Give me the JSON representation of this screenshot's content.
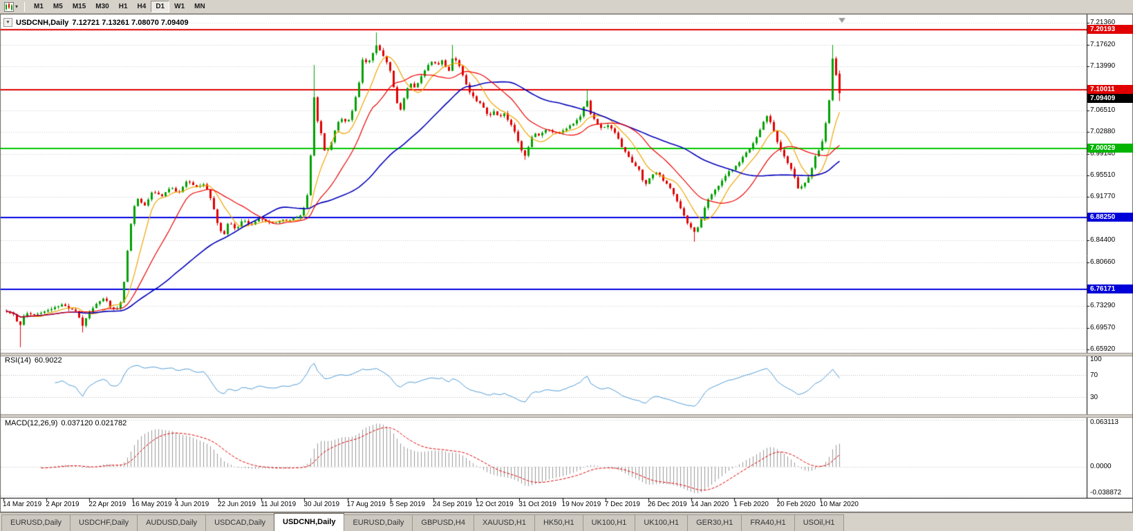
{
  "icons": {
    "collapse": "▼",
    "caret": "▾"
  },
  "toolbar": {
    "buttons": [
      "M1",
      "M5",
      "M15",
      "M30",
      "H1",
      "H4",
      "D1",
      "W1",
      "MN"
    ],
    "active": "D1"
  },
  "chart": {
    "title": {
      "symbol_text": "USDCNH,Daily",
      "ohlc": "7.12721 7.13261 7.08070 7.09409"
    },
    "price_axis": {
      "labels": [
        {
          "text": "7.21360",
          "price": 7.2136,
          "style": "plain"
        },
        {
          "text": "7.20193",
          "price": 7.20193,
          "style": "red"
        },
        {
          "text": "7.17620",
          "price": 7.1762,
          "style": "plain"
        },
        {
          "text": "7.13990",
          "price": 7.1399,
          "style": "plain"
        },
        {
          "text": "7.10011",
          "price": 7.10011,
          "style": "red"
        },
        {
          "text": "7.09409",
          "price": 7.09409,
          "style": "black"
        },
        {
          "text": "7.06510",
          "price": 7.0651,
          "style": "plain"
        },
        {
          "text": "7.02880",
          "price": 7.0288,
          "style": "plain"
        },
        {
          "text": "7.00029",
          "price": 7.00029,
          "style": "green"
        },
        {
          "text": "6.99140",
          "price": 6.9914,
          "style": "plain"
        },
        {
          "text": "6.95510",
          "price": 6.9551,
          "style": "plain"
        },
        {
          "text": "6.91770",
          "price": 6.9177,
          "style": "plain"
        },
        {
          "text": "6.88250",
          "price": 6.8825,
          "style": "blue"
        },
        {
          "text": "6.84400",
          "price": 6.844,
          "style": "plain"
        },
        {
          "text": "6.80660",
          "price": 6.8066,
          "style": "plain"
        },
        {
          "text": "6.76171",
          "price": 6.76171,
          "style": "blue"
        },
        {
          "text": "6.73290",
          "price": 6.7329,
          "style": "plain"
        },
        {
          "text": "6.69570",
          "price": 6.6957,
          "style": "plain"
        },
        {
          "text": "6.65920",
          "price": 6.6592,
          "style": "plain"
        }
      ]
    },
    "x_axis": {
      "labels": [
        "14 Mar 2019",
        "2 Apr 2019",
        "22 Apr 2019",
        "16 May 2019",
        "4 Jun 2019",
        "22 Jun 2019",
        "11 Jul 2019",
        "30 Jul 2019",
        "17 Aug 2019",
        "5 Sep 2019",
        "24 Sep 2019",
        "12 Oct 2019",
        "31 Oct 2019",
        "19 Nov 2019",
        "7 Dec 2019",
        "26 Dec 2019",
        "14 Jan 2020",
        "1 Feb 2020",
        "20 Feb 2020",
        "10 Mar 2020"
      ]
    },
    "hlines": [
      {
        "price": 7.20193,
        "color": "#e00000"
      },
      {
        "price": 7.10011,
        "color": "#e00000"
      },
      {
        "price": 7.00029,
        "color": "#00c800"
      },
      {
        "price": 6.8825,
        "color": "#0000e0"
      },
      {
        "price": 6.76171,
        "color": "#0000e0"
      }
    ]
  },
  "rsi": {
    "label": "RSI(14)",
    "value": "60.9022",
    "period": 14,
    "line_color": "#4f9bd5",
    "levels": [
      70,
      30
    ],
    "axis_labels": [
      {
        "text": "100",
        "value": 100
      },
      {
        "text": "70",
        "value": 70
      },
      {
        "text": "30",
        "value": 30
      }
    ]
  },
  "macd": {
    "label": "MACD(12,26,9)",
    "values": "0.037120 0.021782",
    "histogram_color": "#999999",
    "signal_color": "#e00000",
    "axis_labels": [
      {
        "text": "0.063113",
        "value": 0.063113
      },
      {
        "text": "0.0000",
        "value": 0
      },
      {
        "text": "-0.038872",
        "value": -0.038872
      }
    ]
  },
  "tabs": {
    "items": [
      "EURUSD,Daily",
      "USDCHF,Daily",
      "AUDUSD,Daily",
      "USDCAD,Daily",
      "USDCNH,Daily",
      "EURUSD,Daily",
      "GBPUSD,H4",
      "XAUUSD,H1",
      "HK50,H1",
      "UK100,H1",
      "UK100,H1",
      "GER30,H1",
      "FRA40,H1",
      "USOil,H1"
    ],
    "active_index": 4
  },
  "chart_data": {
    "type": "candlestick",
    "symbol": "USDCNH",
    "timeframe": "Daily",
    "last_bar": {
      "open": 7.12721,
      "high": 7.13261,
      "low": 7.0807,
      "close": 7.09409
    },
    "price_range": {
      "top": 7.2136,
      "bottom": 6.6592
    },
    "bars": 242,
    "noise": 0.0036,
    "wick": 0.0042,
    "colors": {
      "bull": "#00a000",
      "bear": "#e00000"
    },
    "moving_averages": [
      {
        "period": 8,
        "color": "#f0a500",
        "width": 1.2
      },
      {
        "period": 45,
        "color": "#0000bb",
        "width": 1.6
      },
      {
        "period": 18,
        "color": "#ee0000",
        "width": 1.2
      }
    ],
    "anchors": [
      [
        0.0,
        6.725
      ],
      [
        0.01,
        6.718
      ],
      [
        0.015,
        6.692
      ],
      [
        0.022,
        6.722
      ],
      [
        0.039,
        6.72
      ],
      [
        0.051,
        6.728
      ],
      [
        0.068,
        6.735
      ],
      [
        0.085,
        6.722
      ],
      [
        0.091,
        6.7
      ],
      [
        0.098,
        6.722
      ],
      [
        0.11,
        6.742
      ],
      [
        0.118,
        6.748
      ],
      [
        0.124,
        6.732
      ],
      [
        0.134,
        6.728
      ],
      [
        0.139,
        6.745
      ],
      [
        0.146,
        6.835
      ],
      [
        0.152,
        6.9
      ],
      [
        0.158,
        6.915
      ],
      [
        0.166,
        6.903
      ],
      [
        0.176,
        6.928
      ],
      [
        0.186,
        6.918
      ],
      [
        0.197,
        6.932
      ],
      [
        0.207,
        6.925
      ],
      [
        0.217,
        6.945
      ],
      [
        0.227,
        6.932
      ],
      [
        0.238,
        6.938
      ],
      [
        0.247,
        6.905
      ],
      [
        0.255,
        6.862
      ],
      [
        0.261,
        6.852
      ],
      [
        0.267,
        6.878
      ],
      [
        0.275,
        6.862
      ],
      [
        0.283,
        6.88
      ],
      [
        0.293,
        6.872
      ],
      [
        0.304,
        6.88
      ],
      [
        0.317,
        6.874
      ],
      [
        0.329,
        6.878
      ],
      [
        0.342,
        6.88
      ],
      [
        0.354,
        6.886
      ],
      [
        0.361,
        6.92
      ],
      [
        0.366,
        7.0
      ],
      [
        0.369,
        7.09
      ],
      [
        0.373,
        7.048
      ],
      [
        0.378,
        7.022
      ],
      [
        0.383,
        6.988
      ],
      [
        0.39,
        7.012
      ],
      [
        0.396,
        7.042
      ],
      [
        0.403,
        7.052
      ],
      [
        0.409,
        7.045
      ],
      [
        0.416,
        7.068
      ],
      [
        0.423,
        7.11
      ],
      [
        0.428,
        7.158
      ],
      [
        0.433,
        7.142
      ],
      [
        0.439,
        7.16
      ],
      [
        0.445,
        7.178
      ],
      [
        0.45,
        7.16
      ],
      [
        0.456,
        7.148
      ],
      [
        0.462,
        7.128
      ],
      [
        0.467,
        7.085
      ],
      [
        0.472,
        7.062
      ],
      [
        0.478,
        7.09
      ],
      [
        0.484,
        7.112
      ],
      [
        0.491,
        7.102
      ],
      [
        0.497,
        7.122
      ],
      [
        0.504,
        7.138
      ],
      [
        0.511,
        7.148
      ],
      [
        0.517,
        7.142
      ],
      [
        0.524,
        7.152
      ],
      [
        0.53,
        7.128
      ],
      [
        0.536,
        7.158
      ],
      [
        0.542,
        7.148
      ],
      [
        0.549,
        7.118
      ],
      [
        0.555,
        7.098
      ],
      [
        0.564,
        7.082
      ],
      [
        0.572,
        7.072
      ],
      [
        0.579,
        7.052
      ],
      [
        0.585,
        7.064
      ],
      [
        0.592,
        7.055
      ],
      [
        0.598,
        7.06
      ],
      [
        0.605,
        7.042
      ],
      [
        0.612,
        7.022
      ],
      [
        0.617,
        7.0
      ],
      [
        0.622,
        6.988
      ],
      [
        0.627,
        7.005
      ],
      [
        0.633,
        7.028
      ],
      [
        0.64,
        7.022
      ],
      [
        0.648,
        7.032
      ],
      [
        0.657,
        7.024
      ],
      [
        0.665,
        7.028
      ],
      [
        0.673,
        7.034
      ],
      [
        0.681,
        7.042
      ],
      [
        0.69,
        7.056
      ],
      [
        0.696,
        7.088
      ],
      [
        0.701,
        7.058
      ],
      [
        0.708,
        7.042
      ],
      [
        0.714,
        7.034
      ],
      [
        0.723,
        7.04
      ],
      [
        0.731,
        7.024
      ],
      [
        0.739,
        7.002
      ],
      [
        0.746,
        6.986
      ],
      [
        0.753,
        6.972
      ],
      [
        0.759,
        6.965
      ],
      [
        0.766,
        6.938
      ],
      [
        0.773,
        6.952
      ],
      [
        0.781,
        6.96
      ],
      [
        0.789,
        6.945
      ],
      [
        0.797,
        6.932
      ],
      [
        0.806,
        6.908
      ],
      [
        0.812,
        6.888
      ],
      [
        0.819,
        6.87
      ],
      [
        0.826,
        6.856
      ],
      [
        0.832,
        6.872
      ],
      [
        0.84,
        6.908
      ],
      [
        0.849,
        6.93
      ],
      [
        0.857,
        6.942
      ],
      [
        0.865,
        6.958
      ],
      [
        0.874,
        6.966
      ],
      [
        0.882,
        6.982
      ],
      [
        0.89,
        6.996
      ],
      [
        0.898,
        7.014
      ],
      [
        0.907,
        7.042
      ],
      [
        0.913,
        7.056
      ],
      [
        0.919,
        7.04
      ],
      [
        0.925,
        7.012
      ],
      [
        0.932,
        6.992
      ],
      [
        0.938,
        6.975
      ],
      [
        0.945,
        6.955
      ],
      [
        0.951,
        6.926
      ],
      [
        0.958,
        6.94
      ],
      [
        0.965,
        6.958
      ],
      [
        0.971,
        6.988
      ],
      [
        0.978,
        7.005
      ],
      [
        0.983,
        7.042
      ],
      [
        0.988,
        7.088
      ],
      [
        0.992,
        7.158
      ],
      [
        0.995,
        7.132
      ],
      [
        1.0,
        7.094
      ]
    ],
    "spikes": [
      {
        "t": 0.015,
        "low": 6.663
      },
      {
        "t": 0.091,
        "low": 6.688
      },
      {
        "t": 0.369,
        "high": 7.142
      },
      {
        "t": 0.445,
        "high": 7.197
      },
      {
        "t": 0.536,
        "high": 7.176
      },
      {
        "t": 0.622,
        "low": 6.981
      },
      {
        "t": 0.696,
        "high": 7.1
      },
      {
        "t": 0.826,
        "low": 6.842
      },
      {
        "t": 0.992,
        "high": 7.176
      }
    ]
  }
}
